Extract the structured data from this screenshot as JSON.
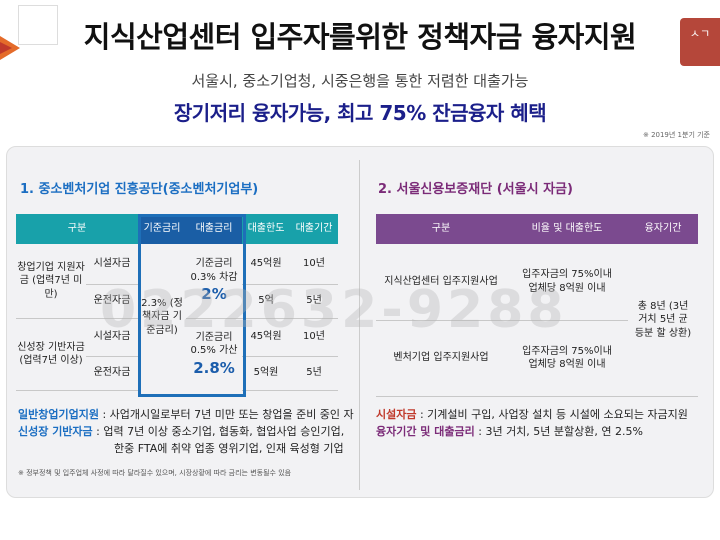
{
  "header": {
    "title": "지식산업센터 입주자를위한 정책자금 융자지원",
    "subtitle1": "서울시, 중소기업청, 시중은행을 통한 저렴한 대출가능",
    "subtitle2": "장기저리 융자가능, 최고 75% 잔금융자 혜택",
    "note": "※ 2019년 1분기 기준",
    "logo_right": "ㅅㄱ"
  },
  "left": {
    "section_title": "1. 중소벤처기업 진흥공단(중소벤처기업부)",
    "headers": [
      "구분",
      "기준금리",
      "대출금리",
      "대출한도",
      "대출기간"
    ],
    "group1": "창업기업 지원자금 (업력7년 미만)",
    "group2": "신성장 기반자금 (업력7년 이상)",
    "fund1": "시설자금",
    "fund2": "운전자금",
    "base_rate": "2.3% (정책자금 기준금리)",
    "rate1_line": "기준금리 0.3% 차감",
    "rate1_big": "2%",
    "rate2_line": "기준금리 0.5% 가산",
    "rate2_big": "2.8%",
    "limits": [
      "45억원",
      "5억",
      "45억원",
      "5억원"
    ],
    "periods": [
      "10년",
      "5년",
      "10년",
      "5년"
    ],
    "foot1_label": "일반창업기업지원",
    "foot1_text": " : 사업개시일로부터 7년 미만 또는 창업을 준비 중인 자",
    "foot2_label": "신성장 기반자금",
    "foot2_text": " : 업력 7년 이상 중소기업, 협동화, 협업사업 승인기업,",
    "foot3_text": "한중 FTA에 취약 업종 영위기업, 인재 육성형 기업",
    "tiny_note": "※ 정부정책 및 입주업체 사정에 따라 달라질수 있으며, 시장상황에 따라 금리는 변동될수 있음"
  },
  "right": {
    "section_title": "2. 서울신용보증재단 (서울시 자금)",
    "headers": [
      "구분",
      "비율 및 대출한도",
      "융자기간"
    ],
    "row1_name": "지식산업센터 입주지원사업",
    "row1_ratio": "입주자금의 75%이내 업체당 8억원 이내",
    "row2_name": "벤처기업 입주지원사업",
    "row2_ratio": "입주자금의 75%이내 업체당 8억원 이내",
    "period": "총 8년 (3년 거치 5년 균등분 할 상환)",
    "foot1_label": "시설자금",
    "foot1_text": " : 기계설비 구입, 사업장 설치 등 시설에 소요되는 자금지원",
    "foot2_label": "융자기간 및 대출금리",
    "foot2_text": " : 3년 거치, 5년 분할상환, 연 2.5%"
  },
  "watermark": "0222632-9288",
  "colors": {
    "teal": "#18a1aa",
    "blue": "#1a5ea5",
    "purple": "#7b4a8f",
    "title_blue": "#1b1f8a"
  }
}
